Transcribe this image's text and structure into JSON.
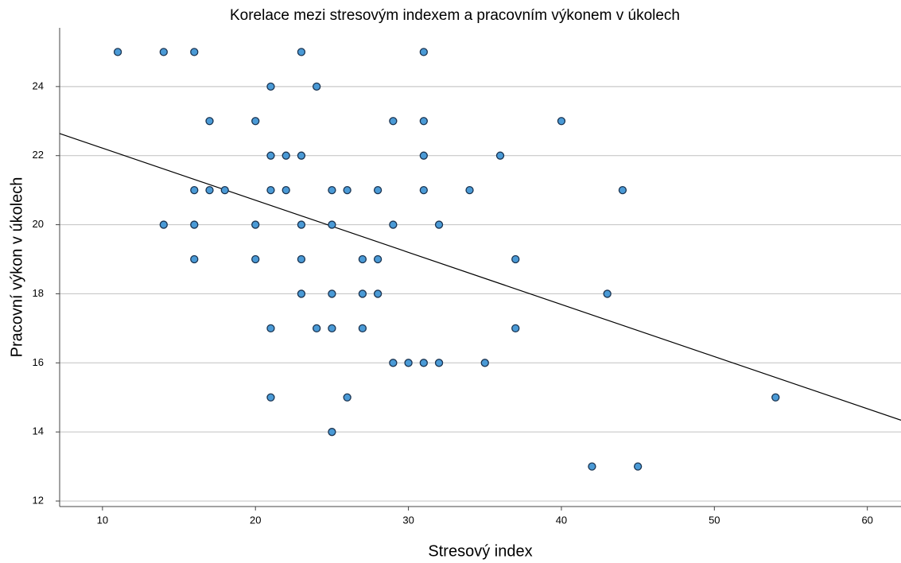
{
  "chart_data": {
    "type": "scatter",
    "title": "Korelace mezi stresovým indexem a pracovním výkonem v úkolech",
    "x_label": "Stresový index",
    "y_label": "Pracovní výkon v úkolech",
    "series": [
      {
        "color": "#4a9ad6",
        "x": [
          11,
          14,
          16,
          23,
          31,
          21,
          24,
          17,
          20,
          29,
          31,
          40,
          21,
          22,
          23,
          31,
          36,
          16,
          17,
          18,
          21,
          22,
          25,
          26,
          28,
          31,
          34,
          44,
          14,
          16,
          20,
          23,
          25,
          29,
          32,
          16,
          20,
          23,
          27,
          28,
          37,
          23,
          25,
          27,
          28,
          43,
          21,
          24,
          25,
          27,
          37,
          29,
          30,
          31,
          32,
          35,
          21,
          26,
          54,
          25,
          42,
          45
        ],
        "values": [
          25,
          25,
          25,
          25,
          25,
          24,
          24,
          23,
          23,
          23,
          23,
          23,
          22,
          22,
          22,
          22,
          22,
          21,
          21,
          21,
          21,
          21,
          21,
          21,
          21,
          21,
          21,
          21,
          20,
          20,
          20,
          20,
          20,
          20,
          20,
          19,
          19,
          19,
          19,
          19,
          19,
          18,
          18,
          18,
          18,
          18,
          17,
          17,
          17,
          17,
          17,
          16,
          16,
          16,
          16,
          16,
          15,
          15,
          15,
          14,
          13,
          13
        ]
      }
    ],
    "trend_line": {
      "x": [
        7.2,
        62.2
      ],
      "y": [
        22.64,
        14.34
      ],
      "color": "#000000"
    },
    "xlim": [
      7.2,
      62.2
    ],
    "xticks": [
      10,
      20,
      30,
      40,
      50,
      60
    ],
    "ylim": [
      11.84,
      25.7
    ],
    "yticks": [
      12,
      14,
      16,
      18,
      20,
      22,
      24
    ],
    "grid": true
  }
}
